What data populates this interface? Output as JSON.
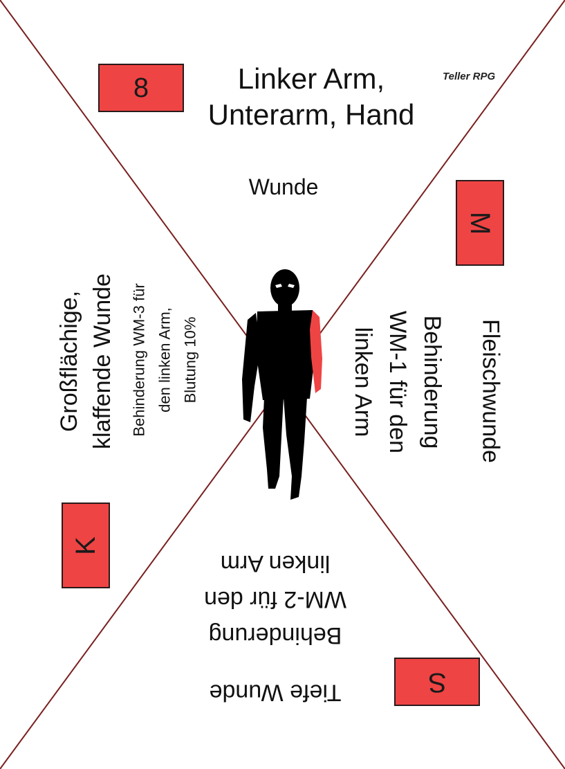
{
  "card": {
    "number": "8",
    "title_line1": "Linker Arm,",
    "title_line2": "Unterarm, Hand",
    "brand": "Teller RPG",
    "subtitle": "Wunde",
    "colors": {
      "accent": "#ef4444",
      "lines": "#7a1f1f",
      "figure": "#000000"
    }
  },
  "right": {
    "letter": "M",
    "heading": "Fleischwunde",
    "line1": "Behinderung",
    "line2": "WM-1 für den",
    "line3": "linken Arm"
  },
  "left": {
    "letter": "K",
    "line1": "Großflächige,",
    "line2": "klaffende  Wunde",
    "line3": "Behinderung WM-3 für",
    "line4": "den linken Arm,",
    "line5": "Blutung 10%"
  },
  "bottom": {
    "letter": "S",
    "heading": "Tiefe Wunde",
    "line1": "Behinderung",
    "line2": "WM-2 für den",
    "line3": "linken  Arm"
  }
}
